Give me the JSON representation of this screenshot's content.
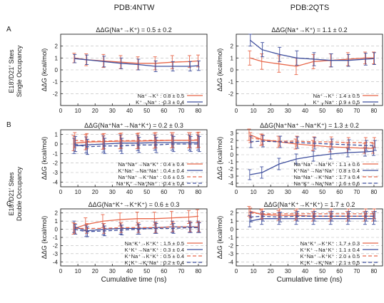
{
  "column_titles": [
    "PDB:4NTW",
    "PDB:2QTS"
  ],
  "row_labels": [
    "A",
    "B",
    "C"
  ],
  "row_group_labels": [
    [
      "E18′/D21′ Sites",
      "Single Occupancy"
    ],
    [
      "E18′/D21′ Sites",
      "Double Occupancy"
    ]
  ],
  "colors": {
    "red": "#e8674a",
    "blue": "#3f4f9e",
    "grid": "#b8b8b8"
  },
  "chart_data": [
    {
      "id": "A-4NTW",
      "type": "line",
      "title": "ΔΔG(Na⁺→K⁺) = 0.5 ± 0.2",
      "xlabel": "",
      "ylabel": "ΔΔG (kcal/mol)",
      "x": [
        8,
        15,
        25,
        35,
        45,
        55,
        65,
        75,
        80
      ],
      "xlim": [
        0,
        85
      ],
      "ylim": [
        -3,
        3
      ],
      "xticks": [
        "0",
        "10",
        "20",
        "30",
        "40",
        "50",
        "60",
        "70",
        "80"
      ],
      "yticks": [
        "-2",
        "-1",
        "0",
        "1",
        "2"
      ],
      "grid": "horizontal dashed",
      "legend_position": "bottom-right",
      "series": [
        {
          "name": "Na⁺→K⁺ : 0.8 ± 0.5",
          "color": "#e8674a",
          "dashed": false,
          "values": [
            1.0,
            0.85,
            0.75,
            0.65,
            0.55,
            0.55,
            0.65,
            0.7,
            0.75
          ],
          "errors": [
            0.4,
            0.5,
            0.55,
            0.55,
            0.55,
            0.55,
            0.55,
            0.5,
            0.5
          ]
        },
        {
          "name": "K⁺→Na⁺ : -0.3 ± 0.4",
          "color": "#3f4f9e",
          "dashed": false,
          "values": [
            0.95,
            0.85,
            0.7,
            0.55,
            0.45,
            0.3,
            0.3,
            0.3,
            0.35
          ],
          "errors": [
            0.35,
            0.4,
            0.45,
            0.45,
            0.45,
            0.45,
            0.4,
            0.4,
            0.4
          ]
        }
      ]
    },
    {
      "id": "A-2QTS",
      "type": "line",
      "title": "ΔΔG(Na⁺→K⁺) = 1.1 ± 0.2",
      "xlabel": "",
      "ylabel": "ΔΔG (kcal/mol)",
      "x": [
        8,
        15,
        25,
        35,
        45,
        55,
        65,
        75,
        80
      ],
      "xlim": [
        0,
        85
      ],
      "ylim": [
        -3,
        3
      ],
      "xticks": [
        "0",
        "10",
        "20",
        "30",
        "40",
        "50",
        "60",
        "70",
        "80"
      ],
      "yticks": [
        "-2",
        "-1",
        "0",
        "1",
        "2"
      ],
      "grid": "horizontal dashed",
      "legend_position": "bottom-right",
      "series": [
        {
          "name": "Na⁺→K⁺ : 1.4 ± 0.5",
          "color": "#e8674a",
          "dashed": false,
          "values": [
            1.0,
            0.7,
            0.5,
            0.3,
            0.7,
            0.8,
            0.9,
            1.0,
            1.0
          ],
          "errors": [
            0.6,
            0.65,
            0.7,
            0.7,
            0.6,
            0.55,
            0.55,
            0.5,
            0.5
          ]
        },
        {
          "name": "K⁺→Na⁺ : 0.9 ± 0.5",
          "color": "#3f4f9e",
          "dashed": false,
          "values": [
            2.5,
            1.7,
            1.3,
            1.0,
            0.9,
            0.8,
            0.8,
            0.9,
            0.95
          ],
          "errors": [
            0.5,
            0.6,
            0.6,
            0.6,
            0.55,
            0.55,
            0.5,
            0.5,
            0.5
          ]
        }
      ]
    },
    {
      "id": "B-4NTW",
      "type": "line",
      "title": "ΔΔG(Na⁺Na⁺→Na⁺K⁺) = 0.2 ± 0.3",
      "xlabel": "",
      "ylabel": "ΔΔG (kcal/mol)",
      "x": [
        8,
        15,
        25,
        35,
        45,
        55,
        65,
        75,
        80
      ],
      "xlim": [
        0,
        85
      ],
      "ylim": [
        -4.5,
        1.5
      ],
      "xticks": [
        "0",
        "10",
        "20",
        "30",
        "40",
        "50",
        "60",
        "70",
        "80"
      ],
      "yticks": [
        "-4",
        "-3",
        "-2",
        "-1",
        "0",
        "1"
      ],
      "grid": "horizontal dashed",
      "legend_position": "bottom-right",
      "series": [
        {
          "name": "Na⁺Na⁺→Na⁺K⁺ : 0.4 ± 0.4",
          "color": "#e8674a",
          "dashed": false,
          "values": [
            0.1,
            0.2,
            0.25,
            0.3,
            0.3,
            0.35,
            0.4,
            0.4,
            0.4
          ],
          "errors": [
            0.8,
            0.8,
            0.8,
            0.8,
            0.8,
            0.8,
            0.8,
            0.8,
            0.8
          ]
        },
        {
          "name": "K⁺Na⁺→Na⁺Na⁺ : 0.4 ± 0.4",
          "color": "#3f4f9e",
          "dashed": false,
          "values": [
            -0.2,
            -0.1,
            0.0,
            0.1,
            0.1,
            0.15,
            0.15,
            0.15,
            0.15
          ],
          "errors": [
            0.8,
            0.85,
            0.85,
            0.85,
            0.8,
            0.8,
            0.8,
            0.8,
            0.8
          ]
        },
        {
          "name": "Na⁺Na⁺→K⁺Na⁺ : 0.6 ± 0.5",
          "color": "#e8674a",
          "dashed": true,
          "values": [
            0.4,
            0.3,
            0.3,
            0.35,
            0.35,
            0.4,
            0.4,
            0.4,
            0.45
          ],
          "errors": [
            0.8,
            0.8,
            0.8,
            0.8,
            0.8,
            0.8,
            0.8,
            0.8,
            0.8
          ]
        },
        {
          "name": "Na⁺K⁺→Na⁺Na⁺ : -0.4 ± 0.4",
          "color": "#3f4f9e",
          "dashed": true,
          "values": [
            0.0,
            -0.3,
            -0.2,
            -0.2,
            -0.1,
            -0.1,
            0.0,
            0.0,
            0.0
          ],
          "errors": [
            0.8,
            0.8,
            0.8,
            0.8,
            0.8,
            0.8,
            0.8,
            0.8,
            0.8
          ]
        }
      ]
    },
    {
      "id": "B-2QTS",
      "type": "line",
      "title": "ΔΔG(Na⁺Na⁺→Na⁺K⁺) = 1.3 ± 0.2",
      "xlabel": "",
      "ylabel": "ΔΔG (kcal/mol)",
      "x": [
        8,
        15,
        25,
        35,
        45,
        55,
        65,
        75,
        80
      ],
      "xlim": [
        0,
        85
      ],
      "ylim": [
        -4.5,
        3.5
      ],
      "xticks": [
        "0",
        "10",
        "20",
        "30",
        "40",
        "50",
        "60",
        "70",
        "80"
      ],
      "yticks": [
        "-4",
        "-3",
        "-2",
        "-1",
        "0",
        "1",
        "2",
        "3"
      ],
      "grid": "horizontal dashed",
      "legend_position": "bottom-right",
      "series": [
        {
          "name": "Na⁺Na⁺→Na⁺K⁺ : 1.1 ± 0.6",
          "color": "#e8674a",
          "dashed": false,
          "values": [
            2.8,
            2.1,
            1.8,
            1.5,
            1.3,
            1.1,
            1.0,
            0.9,
            0.9
          ],
          "errors": [
            0.8,
            0.8,
            0.8,
            0.7,
            0.7,
            0.7,
            0.7,
            0.7,
            0.7
          ]
        },
        {
          "name": "K⁺Na⁺→Na⁺Na⁺ : 0.8 ± 0.4",
          "color": "#3f4f9e",
          "dashed": false,
          "values": [
            -2.8,
            -2.5,
            -1.3,
            -0.6,
            -0.2,
            0.1,
            0.3,
            0.4,
            0.5
          ],
          "errors": [
            0.7,
            0.8,
            0.8,
            0.7,
            0.7,
            0.7,
            0.6,
            0.6,
            0.6
          ]
        },
        {
          "name": "Na⁺Na⁺→K⁺Na⁺ : 1.7 ± 0.4",
          "color": "#e8674a",
          "dashed": true,
          "values": [
            2.4,
            2.1,
            1.9,
            1.9,
            1.8,
            1.8,
            1.7,
            1.7,
            1.7
          ],
          "errors": [
            0.7,
            0.7,
            0.7,
            0.7,
            0.7,
            0.7,
            0.7,
            0.7,
            0.7
          ]
        },
        {
          "name": "Na⁺K⁺→Na⁺Na⁺ : 1.6 ± 0.6",
          "color": "#3f4f9e",
          "dashed": true,
          "values": [
            1.8,
            1.9,
            1.8,
            1.7,
            1.6,
            1.5,
            1.4,
            1.3,
            1.3
          ],
          "errors": [
            0.8,
            0.8,
            0.8,
            0.8,
            0.8,
            0.7,
            0.7,
            0.7,
            0.7
          ]
        }
      ]
    },
    {
      "id": "C-4NTW",
      "type": "line",
      "title": "ΔΔG(Na⁺K⁺→K⁺K⁺) = 0.6 ± 0.3",
      "xlabel": "Cumulative time (ns)",
      "ylabel": "ΔΔG (kcal/mol)",
      "x": [
        8,
        15,
        25,
        35,
        45,
        55,
        65,
        75,
        80
      ],
      "xlim": [
        0,
        85
      ],
      "ylim": [
        -4.5,
        2.5
      ],
      "xticks": [
        "0",
        "10",
        "20",
        "30",
        "40",
        "50",
        "60",
        "70",
        "80"
      ],
      "yticks": [
        "-4",
        "-3",
        "-2",
        "-1",
        "0",
        "1",
        "2"
      ],
      "grid": "horizontal dashed",
      "legend_position": "bottom-right",
      "series": [
        {
          "name": "Na⁺K⁺→K⁺K⁺ : 1.5 ± 0.5",
          "color": "#e8674a",
          "dashed": false,
          "values": [
            0.1,
            0.6,
            1.0,
            1.2,
            1.3,
            1.3,
            1.4,
            1.5,
            1.6
          ],
          "errors": [
            0.7,
            0.8,
            0.8,
            0.8,
            0.8,
            0.8,
            0.8,
            0.8,
            0.8
          ]
        },
        {
          "name": "K⁺K⁺→Na⁺K⁺ : 0.3 ± 0.4",
          "color": "#3f4f9e",
          "dashed": false,
          "values": [
            0.3,
            -0.2,
            0.0,
            0.1,
            0.1,
            0.2,
            0.3,
            0.3,
            0.3
          ],
          "errors": [
            0.7,
            0.7,
            0.7,
            0.7,
            0.7,
            0.7,
            0.7,
            0.7,
            0.7
          ]
        },
        {
          "name": "K⁺Na⁺→K⁺K⁺ : 0.5 ± 0.4",
          "color": "#e8674a",
          "dashed": true,
          "values": [
            0.1,
            0.1,
            0.1,
            0.2,
            0.2,
            0.2,
            0.3,
            0.3,
            0.3
          ],
          "errors": [
            0.6,
            0.6,
            0.6,
            0.6,
            0.6,
            0.6,
            0.6,
            0.6,
            0.6
          ]
        },
        {
          "name": "K⁺K⁺→K⁺Na⁺ : 0.2 ± 0.4",
          "color": "#3f4f9e",
          "dashed": true,
          "values": [
            0.0,
            -0.3,
            -0.2,
            -0.1,
            0.0,
            0.1,
            0.1,
            0.2,
            0.2
          ],
          "errors": [
            0.6,
            0.6,
            0.6,
            0.6,
            0.6,
            0.6,
            0.6,
            0.6,
            0.6
          ]
        }
      ]
    },
    {
      "id": "C-2QTS",
      "type": "line",
      "title": "ΔΔG(Na⁺K⁺→K⁺K⁺) = 1.7 ± 0.2",
      "xlabel": "Cumulative time (ns)",
      "ylabel": "ΔΔG (kcal/mol)",
      "x": [
        8,
        15,
        25,
        35,
        45,
        55,
        65,
        75,
        80
      ],
      "xlim": [
        0,
        85
      ],
      "ylim": [
        -4.5,
        2.5
      ],
      "xticks": [
        "0",
        "10",
        "20",
        "30",
        "40",
        "50",
        "60",
        "70",
        "80"
      ],
      "yticks": [
        "-4",
        "-3",
        "-2",
        "-1",
        "0",
        "1",
        "2"
      ],
      "grid": "horizontal dashed",
      "legend_position": "bottom-right",
      "series": [
        {
          "name": "Na⁺K⁺→K⁺K⁺ : 1.7 ± 0.3",
          "color": "#e8674a",
          "dashed": false,
          "values": [
            2.2,
            1.8,
            1.7,
            1.7,
            1.6,
            1.6,
            1.6,
            1.6,
            1.6
          ],
          "errors": [
            0.6,
            0.6,
            0.6,
            0.6,
            0.6,
            0.6,
            0.6,
            0.6,
            0.6
          ]
        },
        {
          "name": "K⁺K⁺→Na⁺K⁺ : 1.1 ± 0.4",
          "color": "#3f4f9e",
          "dashed": false,
          "values": [
            1.0,
            1.3,
            1.3,
            1.3,
            1.3,
            1.3,
            1.3,
            1.3,
            1.3
          ],
          "errors": [
            0.7,
            0.7,
            0.7,
            0.7,
            0.7,
            0.7,
            0.7,
            0.7,
            0.7
          ]
        },
        {
          "name": "K⁺Na⁺→K⁺K⁺ : 2.0 ± 0.5",
          "color": "#e8674a",
          "dashed": true,
          "values": [
            2.0,
            1.9,
            1.9,
            1.9,
            1.9,
            1.9,
            1.9,
            1.9,
            1.9
          ],
          "errors": [
            0.6,
            0.6,
            0.6,
            0.6,
            0.6,
            0.6,
            0.6,
            0.6,
            0.6
          ]
        },
        {
          "name": "K⁺K⁺→K⁺Na⁺ : 2.1 ± 0.5",
          "color": "#3f4f9e",
          "dashed": true,
          "values": [
            1.5,
            1.6,
            1.5,
            1.6,
            1.6,
            1.6,
            1.6,
            1.6,
            1.6
          ],
          "errors": [
            0.6,
            0.6,
            0.6,
            0.6,
            0.6,
            0.6,
            0.6,
            0.6,
            0.6
          ]
        }
      ]
    }
  ]
}
